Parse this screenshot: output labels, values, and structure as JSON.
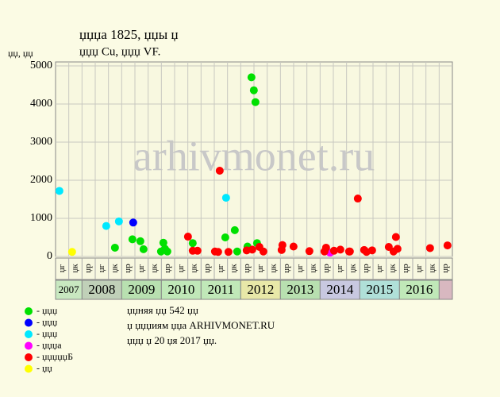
{
  "chart_data": {
    "type": "scatter",
    "title": "џџџа 1825, џџы џ",
    "subtitle": "џџџ Cu, џџџ VF.",
    "ylabel": "џџ, џџ",
    "watermark": "arhivmonet.ru",
    "xlim": [
      2007.333,
      2017.333
    ],
    "ylim": [
      0,
      5000
    ],
    "yticks": [
      0,
      1000,
      2000,
      3000,
      4000,
      5000
    ],
    "grid": true,
    "period_labels": [
      "џг",
      "џк",
      "џр",
      "џг",
      "џк",
      "џр",
      "џг",
      "џк",
      "џр",
      "џг",
      "џк",
      "џр",
      "џг",
      "џк",
      "џр",
      "џг",
      "џк",
      "џр",
      "џг",
      "џк",
      "џр",
      "џг",
      "џк",
      "џр",
      "џг",
      "џк",
      "џр",
      "џг",
      "џк",
      "џр"
    ],
    "years": [
      2007,
      2008,
      2009,
      2010,
      2011,
      2012,
      2013,
      2014,
      2015,
      2016,
      null
    ],
    "year_colors": [
      "#c8e8c0",
      "#c0d0b8",
      "#b8e0b0",
      "#c0e8b8",
      "#c0e8b8",
      "#e8e8a8",
      "#b8e0b0",
      "#c8c8e0",
      "#b0e0d8",
      "#c0e8b8",
      "#d8b8c0"
    ],
    "series": [
      {
        "name": "- џџџ",
        "color": "#00e000",
        "x": [
          2008.83,
          2009.27,
          2009.47,
          2009.55,
          2009.99,
          2010.05,
          2010.09,
          2010.15,
          2010.79,
          2011.61,
          2011.85,
          2011.91,
          2012.17,
          2012.27,
          2012.33,
          2012.37,
          2012.41
        ],
        "values": [
          230,
          450,
          400,
          190,
          130,
          360,
          200,
          130,
          350,
          500,
          690,
          130,
          260,
          4700,
          4360,
          4050,
          350
        ]
      },
      {
        "name": "- џџџ",
        "color": "#0000ff",
        "x": [
          2009.29
        ],
        "values": [
          890
        ]
      },
      {
        "name": "- џџџ",
        "color": "#00e8ff",
        "x": [
          2007.43,
          2008.61,
          2008.93,
          2011.63
        ],
        "values": [
          1720,
          800,
          920,
          1540
        ]
      },
      {
        "name": "- џџџа",
        "color": "#ff00ff",
        "x": [
          2014.25
        ],
        "values": [
          100
        ]
      },
      {
        "name": "- џџџџџБ",
        "color": "#ff0000",
        "x": [
          2010.67,
          2010.79,
          2010.91,
          2011.35,
          2011.43,
          2011.47,
          2011.69,
          2012.15,
          2012.29,
          2012.47,
          2012.57,
          2013.05,
          2013.03,
          2013.33,
          2013.73,
          2014.11,
          2014.15,
          2014.35,
          2014.51,
          2014.73,
          2014.75,
          2014.95,
          2015.11,
          2015.17,
          2015.31,
          2015.73,
          2015.85,
          2015.91,
          2015.95,
          2016.77,
          2017.21
        ],
        "values": [
          520,
          150,
          150,
          130,
          120,
          2250,
          120,
          160,
          180,
          250,
          130,
          300,
          170,
          260,
          140,
          130,
          230,
          150,
          180,
          130,
          130,
          1520,
          170,
          120,
          160,
          250,
          130,
          510,
          200,
          220,
          290
        ]
      },
      {
        "name": "- џџ",
        "color": "#ffff00",
        "x": [
          2007.75
        ],
        "values": [
          120
        ]
      }
    ],
    "notes": [
      "џџняя џџ 542 џџ",
      "џ џџџиям џџа ARHIVMONET.RU",
      "џџџ џ 20 џя 2017 џџ."
    ]
  }
}
